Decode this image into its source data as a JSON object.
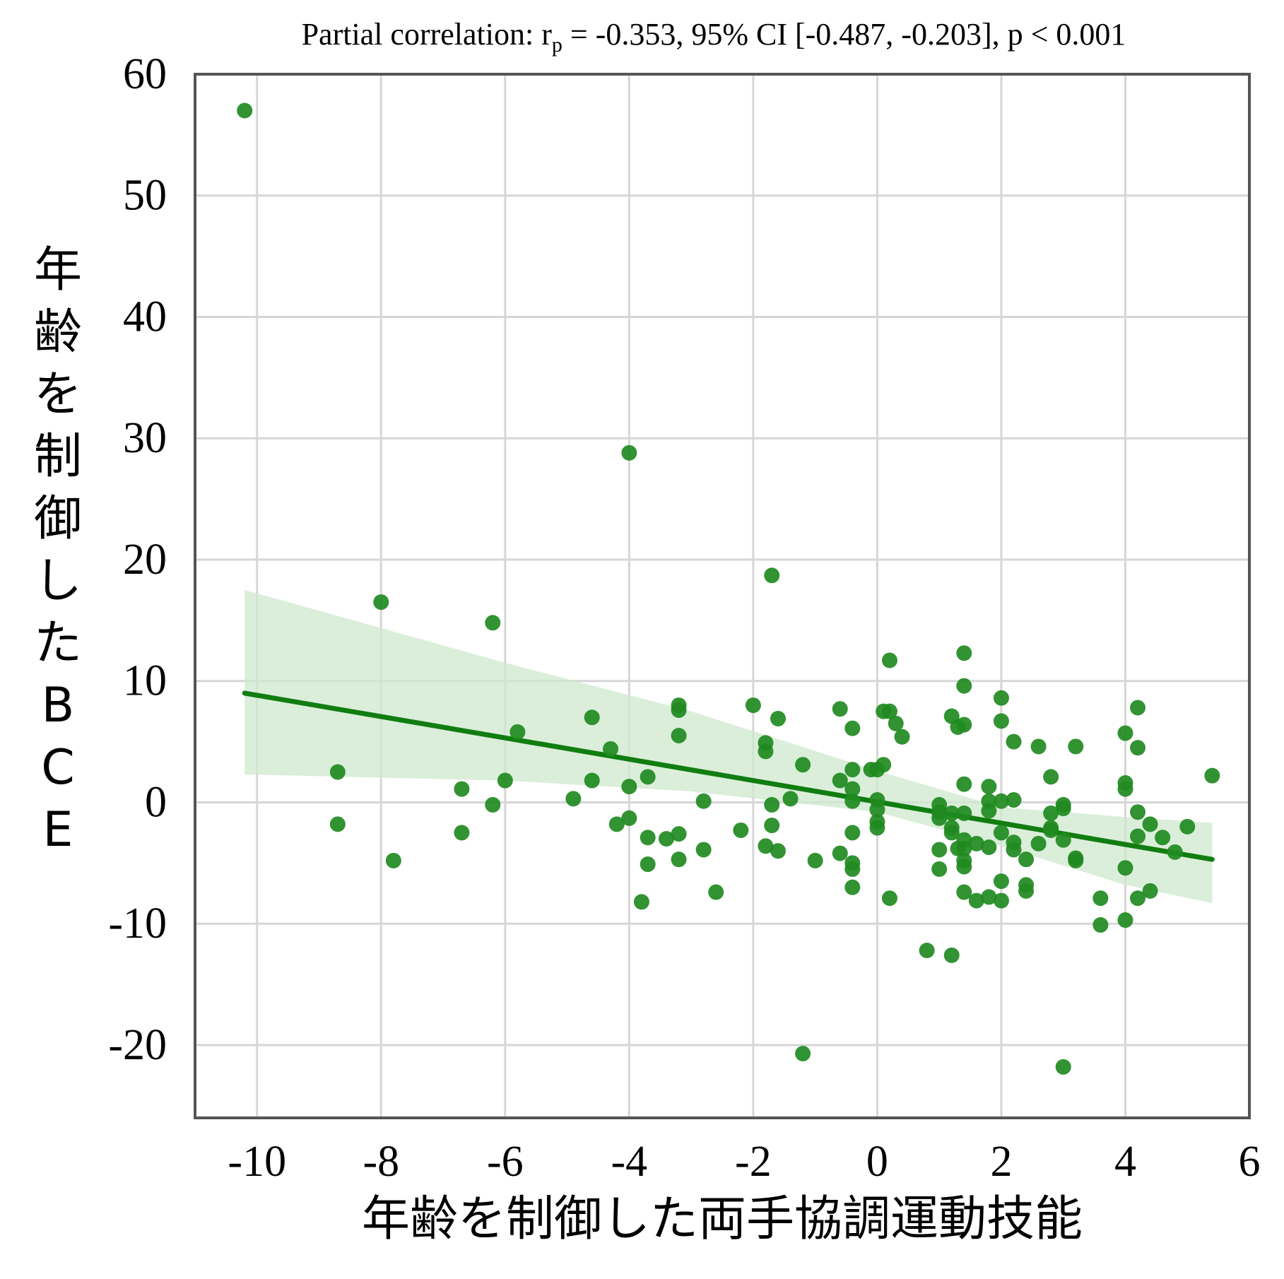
{
  "chart_data": {
    "type": "scatter",
    "title_parts": {
      "prefix": "Partial correlation: r",
      "sub": "p",
      "suffix": " = -0.353, 95% CI [-0.487, -0.203], p < 0.001"
    },
    "xlabel": "年齢を制御した両手協調運動技能",
    "ylabel": "年齢を制御したBCE",
    "xlim": [
      -11,
      6
    ],
    "ylim": [
      -26,
      60
    ],
    "xticks": [
      -10,
      -8,
      -6,
      -4,
      -2,
      0,
      2,
      4,
      6
    ],
    "xtick_labels": [
      "-10",
      "-8",
      "-6",
      "-4",
      "-2",
      "0",
      "2",
      "4",
      "6"
    ],
    "yticks": [
      -20,
      -10,
      0,
      10,
      20,
      30,
      40,
      50,
      60
    ],
    "ytick_labels": [
      "-20",
      "-10",
      "0",
      "10",
      "20",
      "30",
      "40",
      "50",
      "60"
    ],
    "grid": true,
    "colors": {
      "points": "#1f8a1f",
      "line": "#117d11",
      "band": "#cde8cd"
    },
    "regression": {
      "x": [
        -10.2,
        5.4
      ],
      "y": [
        9.0,
        -4.7
      ]
    },
    "ci_band": {
      "x": [
        -10.2,
        -6.0,
        -3.0,
        0.0,
        2.0,
        4.0,
        5.4
      ],
      "upper": [
        17.5,
        11.5,
        7.5,
        2.6,
        -0.4,
        -1.2,
        -1.7
      ],
      "lower": [
        2.3,
        1.8,
        0.9,
        -0.8,
        -3.6,
        -6.8,
        -8.3
      ]
    },
    "points": [
      [
        -10.2,
        57.0
      ],
      [
        -4.0,
        28.8
      ],
      [
        -1.7,
        18.7
      ],
      [
        -8.0,
        16.5
      ],
      [
        -6.2,
        14.8
      ],
      [
        -8.7,
        2.5
      ],
      [
        -8.7,
        -1.8
      ],
      [
        -7.8,
        -4.8
      ],
      [
        -6.7,
        -2.5
      ],
      [
        -6.7,
        1.1
      ],
      [
        -6.2,
        -0.2
      ],
      [
        -6.0,
        1.8
      ],
      [
        -5.8,
        5.8
      ],
      [
        -4.9,
        0.3
      ],
      [
        -4.6,
        7.0
      ],
      [
        -4.6,
        1.8
      ],
      [
        -4.3,
        4.4
      ],
      [
        -4.2,
        -1.8
      ],
      [
        -4.0,
        1.3
      ],
      [
        -4.0,
        -1.3
      ],
      [
        -3.8,
        -8.2
      ],
      [
        -3.7,
        2.1
      ],
      [
        -3.7,
        -2.9
      ],
      [
        -3.7,
        -5.1
      ],
      [
        -3.4,
        -3.0
      ],
      [
        -3.2,
        8.0
      ],
      [
        -3.2,
        7.6
      ],
      [
        -3.2,
        5.5
      ],
      [
        -3.2,
        -2.6
      ],
      [
        -3.2,
        -4.7
      ],
      [
        -2.8,
        0.1
      ],
      [
        -2.8,
        -3.9
      ],
      [
        -2.6,
        -7.4
      ],
      [
        -2.2,
        -2.3
      ],
      [
        -2.0,
        8.0
      ],
      [
        -1.8,
        4.9
      ],
      [
        -1.8,
        4.2
      ],
      [
        -1.8,
        -3.6
      ],
      [
        -1.7,
        -0.2
      ],
      [
        -1.7,
        -1.9
      ],
      [
        -1.6,
        6.9
      ],
      [
        -1.6,
        -4.0
      ],
      [
        -1.4,
        0.3
      ],
      [
        -1.2,
        3.1
      ],
      [
        -1.2,
        -20.7
      ],
      [
        -1.0,
        -4.8
      ],
      [
        -0.6,
        7.7
      ],
      [
        -0.6,
        1.8
      ],
      [
        -0.6,
        -4.2
      ],
      [
        -0.4,
        6.1
      ],
      [
        -0.4,
        2.7
      ],
      [
        -0.4,
        1.1
      ],
      [
        -0.4,
        0.1
      ],
      [
        -0.4,
        -2.5
      ],
      [
        -0.4,
        -5.0
      ],
      [
        -0.4,
        -5.5
      ],
      [
        -0.4,
        -7.0
      ],
      [
        -0.1,
        2.7
      ],
      [
        0.0,
        2.7
      ],
      [
        0.0,
        0.2
      ],
      [
        0.0,
        -0.6
      ],
      [
        0.0,
        -1.6
      ],
      [
        0.0,
        -2.1
      ],
      [
        0.1,
        7.5
      ],
      [
        0.1,
        3.1
      ],
      [
        0.2,
        11.7
      ],
      [
        0.2,
        7.5
      ],
      [
        0.2,
        -7.9
      ],
      [
        0.3,
        6.5
      ],
      [
        0.4,
        5.4
      ],
      [
        0.8,
        -12.2
      ],
      [
        1.0,
        -0.2
      ],
      [
        1.0,
        -0.8
      ],
      [
        1.0,
        -1.3
      ],
      [
        1.0,
        -3.9
      ],
      [
        1.0,
        -5.5
      ],
      [
        1.2,
        -2.5
      ],
      [
        1.2,
        -0.9
      ],
      [
        1.2,
        -2.1
      ],
      [
        1.2,
        7.1
      ],
      [
        1.2,
        -12.6
      ],
      [
        1.3,
        -3.8
      ],
      [
        1.3,
        6.2
      ],
      [
        1.4,
        12.3
      ],
      [
        1.4,
        9.6
      ],
      [
        1.4,
        6.4
      ],
      [
        1.4,
        1.5
      ],
      [
        1.4,
        -0.9
      ],
      [
        1.4,
        -3.1
      ],
      [
        1.4,
        -3.8
      ],
      [
        1.4,
        -4.8
      ],
      [
        1.4,
        -5.3
      ],
      [
        1.4,
        -7.4
      ],
      [
        1.6,
        -3.4
      ],
      [
        1.6,
        -8.1
      ],
      [
        1.8,
        1.3
      ],
      [
        1.8,
        0.1
      ],
      [
        1.8,
        -0.7
      ],
      [
        1.8,
        -3.7
      ],
      [
        1.8,
        -7.8
      ],
      [
        2.0,
        8.6
      ],
      [
        2.0,
        6.7
      ],
      [
        2.0,
        0.1
      ],
      [
        2.0,
        -2.5
      ],
      [
        2.0,
        -6.5
      ],
      [
        2.0,
        -8.1
      ],
      [
        2.2,
        5.0
      ],
      [
        2.2,
        0.2
      ],
      [
        2.2,
        -3.3
      ],
      [
        2.2,
        -3.9
      ],
      [
        2.4,
        -4.7
      ],
      [
        2.4,
        -6.8
      ],
      [
        2.4,
        -7.3
      ],
      [
        2.6,
        4.6
      ],
      [
        2.6,
        -3.4
      ],
      [
        2.8,
        2.1
      ],
      [
        2.8,
        -0.9
      ],
      [
        2.8,
        -2.1
      ],
      [
        2.8,
        -2.3
      ],
      [
        3.0,
        -0.2
      ],
      [
        3.0,
        -0.5
      ],
      [
        3.0,
        -3.1
      ],
      [
        3.0,
        -21.8
      ],
      [
        3.2,
        4.6
      ],
      [
        3.2,
        -4.8
      ],
      [
        3.2,
        -4.6
      ],
      [
        3.6,
        -7.9
      ],
      [
        3.6,
        -10.1
      ],
      [
        4.0,
        5.7
      ],
      [
        4.0,
        1.6
      ],
      [
        4.0,
        1.1
      ],
      [
        4.0,
        -5.4
      ],
      [
        4.0,
        -9.7
      ],
      [
        4.2,
        7.8
      ],
      [
        4.2,
        4.5
      ],
      [
        4.2,
        -0.8
      ],
      [
        4.2,
        -2.8
      ],
      [
        4.2,
        -7.9
      ],
      [
        4.4,
        -1.8
      ],
      [
        4.4,
        -7.3
      ],
      [
        4.6,
        -2.9
      ],
      [
        4.8,
        -4.1
      ],
      [
        5.0,
        -2.0
      ],
      [
        5.4,
        2.2
      ]
    ]
  }
}
